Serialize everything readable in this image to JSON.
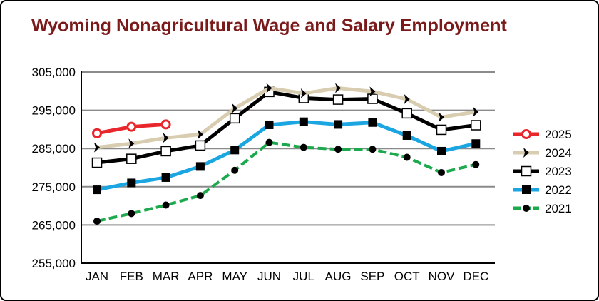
{
  "chart_data": {
    "type": "line",
    "title": "Wyoming Nonagricultural Wage and Salary Employment",
    "xlabel": "",
    "ylabel": "",
    "categories": [
      "JAN",
      "FEB",
      "MAR",
      "APR",
      "MAY",
      "JUN",
      "JUL",
      "AUG",
      "SEP",
      "OCT",
      "NOV",
      "DEC"
    ],
    "ylim": [
      255000,
      305000
    ],
    "yticks": [
      255000,
      265000,
      275000,
      285000,
      295000,
      305000
    ],
    "ytick_labels": [
      "255,000",
      "265,000",
      "275,000",
      "285,000",
      "295,000",
      "305,000"
    ],
    "grid": "horizontal",
    "legend_position": "right",
    "series": [
      {
        "name": "2025",
        "color": "#e8262b",
        "line_color": "#e8262b",
        "marker": "open-circle",
        "values": [
          289000,
          290700,
          291300,
          null,
          null,
          null,
          null,
          null,
          null,
          null,
          null,
          null
        ]
      },
      {
        "name": "2024",
        "color": "#d8cdb0",
        "line_color": "#d8cdb0",
        "marker": "chevron",
        "values": [
          285300,
          286300,
          287800,
          288700,
          295500,
          300800,
          299400,
          300800,
          299900,
          297900,
          293200,
          294600
        ]
      },
      {
        "name": "2023",
        "color": "#000000",
        "line_color": "#000000",
        "marker": "open-square",
        "values": [
          281300,
          282300,
          284300,
          285800,
          292900,
          299800,
          298200,
          297800,
          298000,
          294200,
          289900,
          291100
        ]
      },
      {
        "name": "2022",
        "color": "#1ba6e2",
        "line_color": "#1ba6e2",
        "marker": "filled-square",
        "values": [
          274200,
          276000,
          277400,
          280300,
          284600,
          291200,
          292000,
          291300,
          291800,
          288400,
          284300,
          286300
        ]
      },
      {
        "name": "2021",
        "color": "#1ca84c",
        "line_color": "#1ca84c",
        "marker": "filled-circle",
        "values": [
          266000,
          268000,
          270200,
          272700,
          279300,
          286600,
          285300,
          284800,
          284800,
          282700,
          278700,
          280800
        ]
      }
    ]
  }
}
